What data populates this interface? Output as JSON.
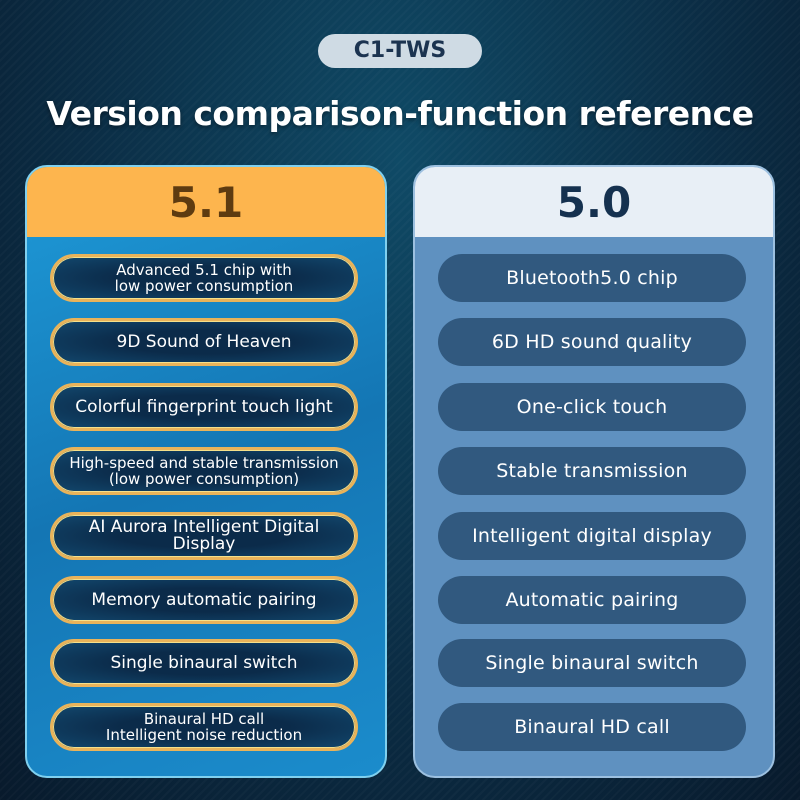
{
  "badge": "C1-TWS",
  "title": "Version comparison-function reference",
  "colors": {
    "v51_header": "#fdb54e",
    "v50_header": "#e8eff6",
    "pill_border": "#e9b35a",
    "v50_pill": "#31597f"
  },
  "v51": {
    "header": "5.1",
    "items": [
      "Advanced 5.1 chip with\nlow power consumption",
      "9D Sound of Heaven",
      "Colorful fingerprint touch light",
      "High-speed and stable transmission\n(low power consumption)",
      "AI Aurora Intelligent Digital Display",
      "Memory automatic pairing",
      "Single binaural switch",
      "Binaural HD call\nIntelligent noise reduction"
    ]
  },
  "v50": {
    "header": "5.0",
    "items": [
      "Bluetooth5.0 chip",
      "6D HD sound quality",
      "One-click touch",
      "Stable transmission",
      "Intelligent digital display",
      "Automatic pairing",
      "Single binaural switch",
      "Binaural HD call"
    ]
  }
}
